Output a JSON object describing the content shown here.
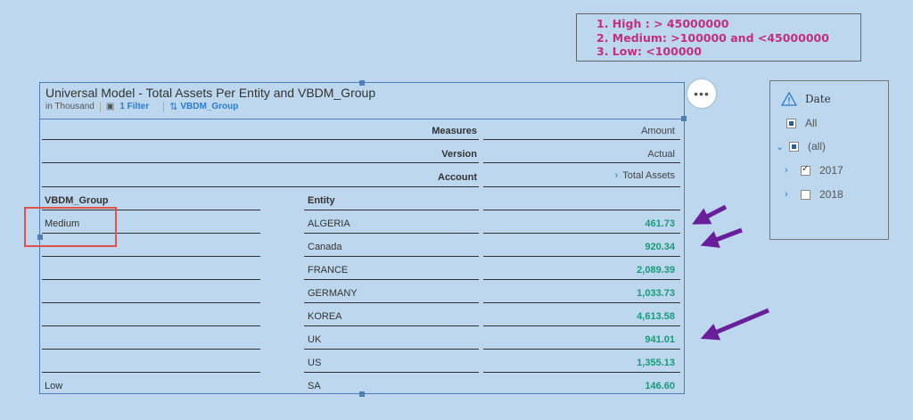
{
  "legend": {
    "lines": [
      "1. High : > 45000000",
      "2. Medium: >100000 and <45000000",
      "3. Low: <100000"
    ]
  },
  "widget": {
    "title": "Universal Model - Total Assets Per Entity and VBDM_Group",
    "unit": "in Thousand",
    "filter_label": "1 Filter",
    "group_label": "VBDM_Group"
  },
  "table": {
    "measures_label": "Measures",
    "measures_value": "Amount",
    "version_label": "Version",
    "version_value": "Actual",
    "account_label": "Account",
    "account_value": "Total Assets",
    "col_group": "VBDM_Group",
    "col_entity": "Entity",
    "rows": [
      {
        "group": "Medium",
        "entity": "ALGERIA",
        "value": "461.73"
      },
      {
        "group": "",
        "entity": "Canada",
        "value": "920.34"
      },
      {
        "group": "",
        "entity": "FRANCE",
        "value": "2,089.39"
      },
      {
        "group": "",
        "entity": "GERMANY",
        "value": "1,033.73"
      },
      {
        "group": "",
        "entity": "KOREA",
        "value": "4,613.58"
      },
      {
        "group": "",
        "entity": "UK",
        "value": "941.01"
      },
      {
        "group": "",
        "entity": "US",
        "value": "1,355.13"
      },
      {
        "group": "Low",
        "entity": "SA",
        "value": "146.60"
      }
    ]
  },
  "more_button": "•••",
  "filter_panel": {
    "title": "Date",
    "items": [
      {
        "label": "All",
        "state": "partial"
      },
      {
        "label": "(all)",
        "state": "partial"
      },
      {
        "label": "2017",
        "state": "checked"
      },
      {
        "label": "2018",
        "state": "unchecked"
      }
    ]
  },
  "colors": {
    "background": "#bdd7ee",
    "legend_text": "#c0307d",
    "value_green": "#1a9a7a",
    "arrow_purple": "#6a1f9a",
    "highlight_red": "#e0524a",
    "link_blue": "#2b7cc9"
  },
  "icons": [
    "warning-icon",
    "cube-icon",
    "swap-icon",
    "chevron-right-icon",
    "chevron-down-icon",
    "more-icon"
  ]
}
